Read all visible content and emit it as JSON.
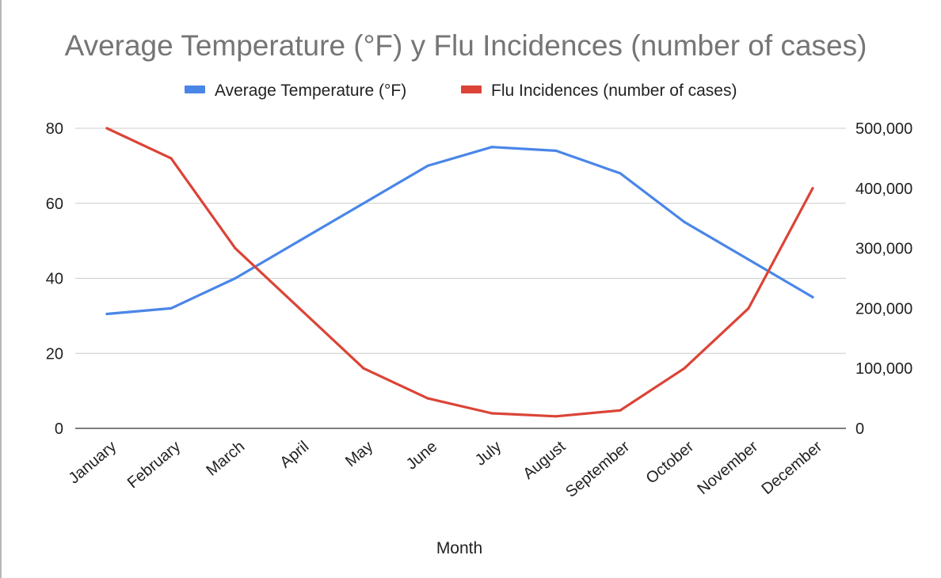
{
  "chart_data": {
    "type": "line",
    "title": "Average Temperature (°F) y Flu Incidences (number of cases)",
    "xlabel": "Month",
    "ylabel": "",
    "y2label": "",
    "categories": [
      "January",
      "February",
      "March",
      "April",
      "May",
      "June",
      "July",
      "August",
      "September",
      "October",
      "November",
      "December"
    ],
    "ylim": [
      0,
      80
    ],
    "y_ticks": [
      "0",
      "20",
      "40",
      "60",
      "80"
    ],
    "y2lim": [
      0,
      500000
    ],
    "y2_ticks": [
      "0",
      "100,000",
      "200,000",
      "300,000",
      "400,000",
      "500,000"
    ],
    "grid": true,
    "legend_position": "top",
    "series": [
      {
        "name": "Average Temperature (°F)",
        "axis": "left",
        "color": "#4a86e8",
        "values": [
          30.5,
          32,
          40,
          50,
          60,
          70,
          75,
          74,
          68,
          55,
          45,
          35
        ]
      },
      {
        "name": "Flu Incidences (number of cases)",
        "axis": "right",
        "color": "#db4437",
        "values": [
          500000,
          450000,
          300000,
          200000,
          100000,
          50000,
          25000,
          20000,
          30000,
          100000,
          200000,
          400000
        ]
      }
    ]
  }
}
